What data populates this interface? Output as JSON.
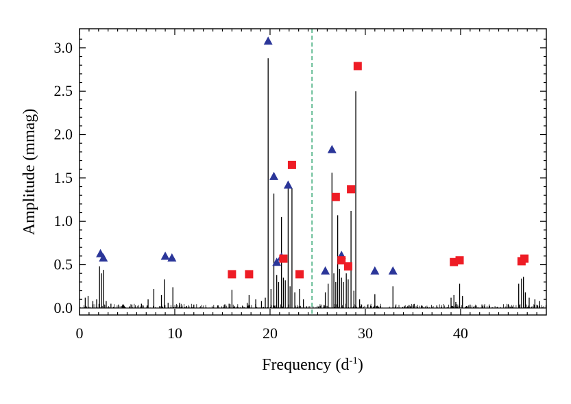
{
  "chart_data": {
    "type": "line",
    "xlabel": "Frequency (d",
    "xlabel_superscript": "-1",
    "xlabel_suffix": ")",
    "ylabel": "Amplitude (mmag)",
    "xlim": [
      0,
      49
    ],
    "ylim": [
      -0.08,
      3.22
    ],
    "x_ticks": [
      0,
      10,
      20,
      30,
      40
    ],
    "x_tick_labels": [
      "0",
      "10",
      "20",
      "30",
      "40"
    ],
    "y_ticks": [
      0.0,
      0.5,
      1.0,
      1.5,
      2.0,
      2.5,
      3.0
    ],
    "y_tick_labels": [
      "0.0",
      "0.5",
      "1.0",
      "1.5",
      "2.0",
      "2.5",
      "3.0"
    ],
    "reference_line": {
      "x": 24.4,
      "color": "#2aa36b",
      "style": "dashed"
    },
    "spectrum_peaks": [
      [
        0.6,
        0.12
      ],
      [
        0.9,
        0.14
      ],
      [
        1.4,
        0.08
      ],
      [
        1.8,
        0.1
      ],
      [
        2.1,
        0.48
      ],
      [
        2.3,
        0.4
      ],
      [
        2.5,
        0.44
      ],
      [
        2.8,
        0.08
      ],
      [
        3.3,
        0.05
      ],
      [
        4.1,
        0.04
      ],
      [
        5.5,
        0.04
      ],
      [
        6.5,
        0.05
      ],
      [
        7.2,
        0.1
      ],
      [
        7.8,
        0.22
      ],
      [
        8.6,
        0.15
      ],
      [
        8.9,
        0.33
      ],
      [
        9.3,
        0.06
      ],
      [
        9.8,
        0.24
      ],
      [
        10.5,
        0.06
      ],
      [
        12.0,
        0.04
      ],
      [
        14.5,
        0.03
      ],
      [
        15.7,
        0.05
      ],
      [
        16.0,
        0.21
      ],
      [
        17.6,
        0.06
      ],
      [
        17.8,
        0.15
      ],
      [
        18.5,
        0.1
      ],
      [
        19.1,
        0.08
      ],
      [
        19.5,
        0.12
      ],
      [
        19.8,
        2.88
      ],
      [
        20.1,
        0.22
      ],
      [
        20.4,
        1.32
      ],
      [
        20.7,
        0.38
      ],
      [
        20.9,
        0.3
      ],
      [
        21.2,
        1.05
      ],
      [
        21.4,
        0.35
      ],
      [
        21.6,
        0.32
      ],
      [
        21.9,
        1.4
      ],
      [
        22.1,
        0.25
      ],
      [
        22.3,
        1.38
      ],
      [
        22.6,
        0.18
      ],
      [
        23.1,
        0.22
      ],
      [
        23.5,
        0.1
      ],
      [
        25.8,
        0.18
      ],
      [
        26.1,
        0.28
      ],
      [
        26.5,
        1.56
      ],
      [
        26.7,
        0.4
      ],
      [
        26.9,
        0.3
      ],
      [
        27.1,
        1.07
      ],
      [
        27.3,
        0.45
      ],
      [
        27.5,
        0.35
      ],
      [
        27.7,
        0.3
      ],
      [
        28.0,
        0.4
      ],
      [
        28.2,
        0.33
      ],
      [
        28.5,
        1.12
      ],
      [
        28.8,
        0.2
      ],
      [
        29.0,
        2.5
      ],
      [
        29.4,
        0.1
      ],
      [
        31.0,
        0.16
      ],
      [
        32.9,
        0.25
      ],
      [
        35.0,
        0.03
      ],
      [
        37.5,
        0.03
      ],
      [
        39.0,
        0.12
      ],
      [
        39.3,
        0.15
      ],
      [
        39.5,
        0.07
      ],
      [
        39.9,
        0.28
      ],
      [
        40.2,
        0.14
      ],
      [
        41.0,
        0.04
      ],
      [
        43.0,
        0.03
      ],
      [
        45.0,
        0.04
      ],
      [
        46.1,
        0.28
      ],
      [
        46.4,
        0.34
      ],
      [
        46.6,
        0.36
      ],
      [
        46.8,
        0.18
      ],
      [
        47.2,
        0.12
      ],
      [
        47.8,
        0.1
      ],
      [
        48.3,
        0.08
      ]
    ],
    "series": [
      {
        "marker": "triangle",
        "color": "#2b3699",
        "x": [
          2.2,
          2.5,
          9.0,
          9.7,
          19.8,
          20.4,
          20.7,
          21.2,
          21.9,
          25.8,
          26.5,
          27.5,
          31.0,
          32.9
        ],
        "y": [
          0.63,
          0.58,
          0.6,
          0.58,
          3.08,
          1.52,
          0.53,
          0.59,
          1.42,
          0.43,
          1.83,
          0.61,
          0.43,
          0.43
        ]
      },
      {
        "marker": "square",
        "color": "#ee1c25",
        "x": [
          16.0,
          17.8,
          21.4,
          22.3,
          23.1,
          26.9,
          27.5,
          28.2,
          28.5,
          29.2,
          39.3,
          39.9,
          46.4,
          46.7
        ],
        "y": [
          0.39,
          0.39,
          0.57,
          1.65,
          0.39,
          1.28,
          0.55,
          0.48,
          1.37,
          2.79,
          0.53,
          0.55,
          0.54,
          0.57
        ]
      }
    ]
  }
}
